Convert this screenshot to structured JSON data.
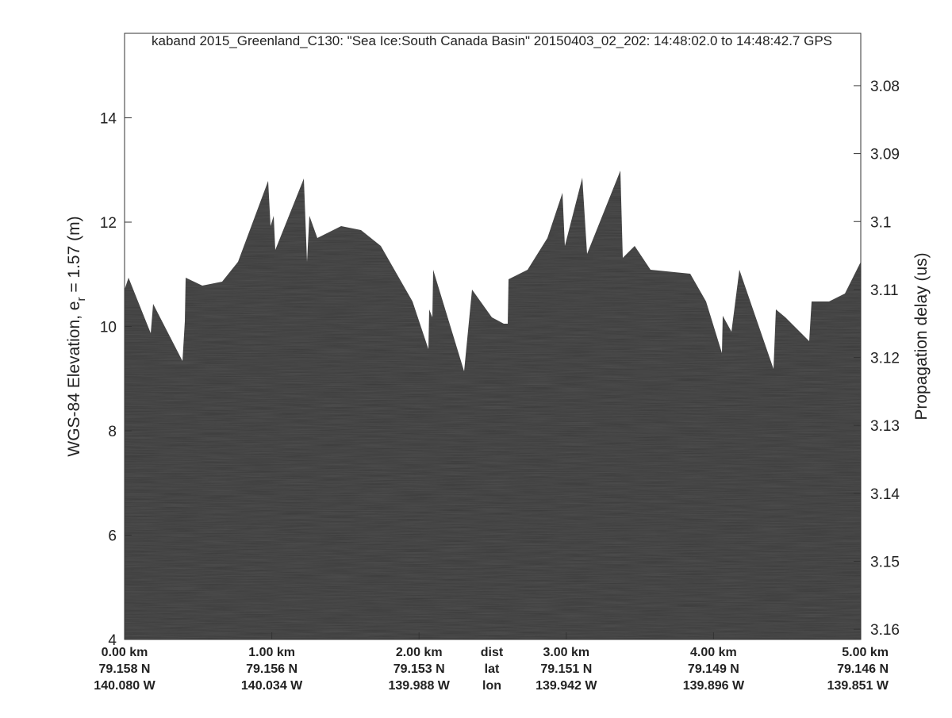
{
  "chart_data": {
    "type": "radargram",
    "title": "kaband 2015_Greenland_C130: \"Sea Ice:South Canada Basin\"  20150403_02_202: 14:48:02.0 to 14:48:42.7 GPS",
    "ylabel": [
      "WGS-84 Elevation, e",
      "r",
      " = 1.57 (m)"
    ],
    "y2label": "Propagation delay (us)",
    "ylim": [
      4,
      15.62
    ],
    "yticks": [
      4,
      6,
      8,
      10,
      12,
      14
    ],
    "y2lim": [
      3.1615,
      3.0723
    ],
    "y2ticks": [
      3.08,
      3.09,
      {
        "value": 3.1,
        "label": "3.1"
      },
      3.11,
      3.12,
      3.13,
      3.14,
      3.15,
      3.16
    ],
    "xlim": [
      0,
      5
    ],
    "xticks": [
      {
        "value": 0,
        "label": "0.00 km"
      },
      {
        "value": 1,
        "label": "1.00 km"
      },
      {
        "value": 2,
        "label": "2.00 km"
      },
      {
        "value": 3,
        "label": "3.00 km"
      },
      {
        "value": 4,
        "label": "4.00 km"
      },
      {
        "value": 5,
        "label": "5.00 km"
      }
    ],
    "lat_labels": [
      "79.158 N",
      "79.156 N",
      "79.153 N",
      "79.151 N",
      "79.149 N",
      "79.146 N"
    ],
    "lon_labels": [
      "140.080 W",
      "140.034 W",
      "139.988 W",
      "139.942 W",
      "139.896 W",
      "139.851 W"
    ],
    "row_names": [
      "dist",
      "lat",
      "lon"
    ]
  }
}
